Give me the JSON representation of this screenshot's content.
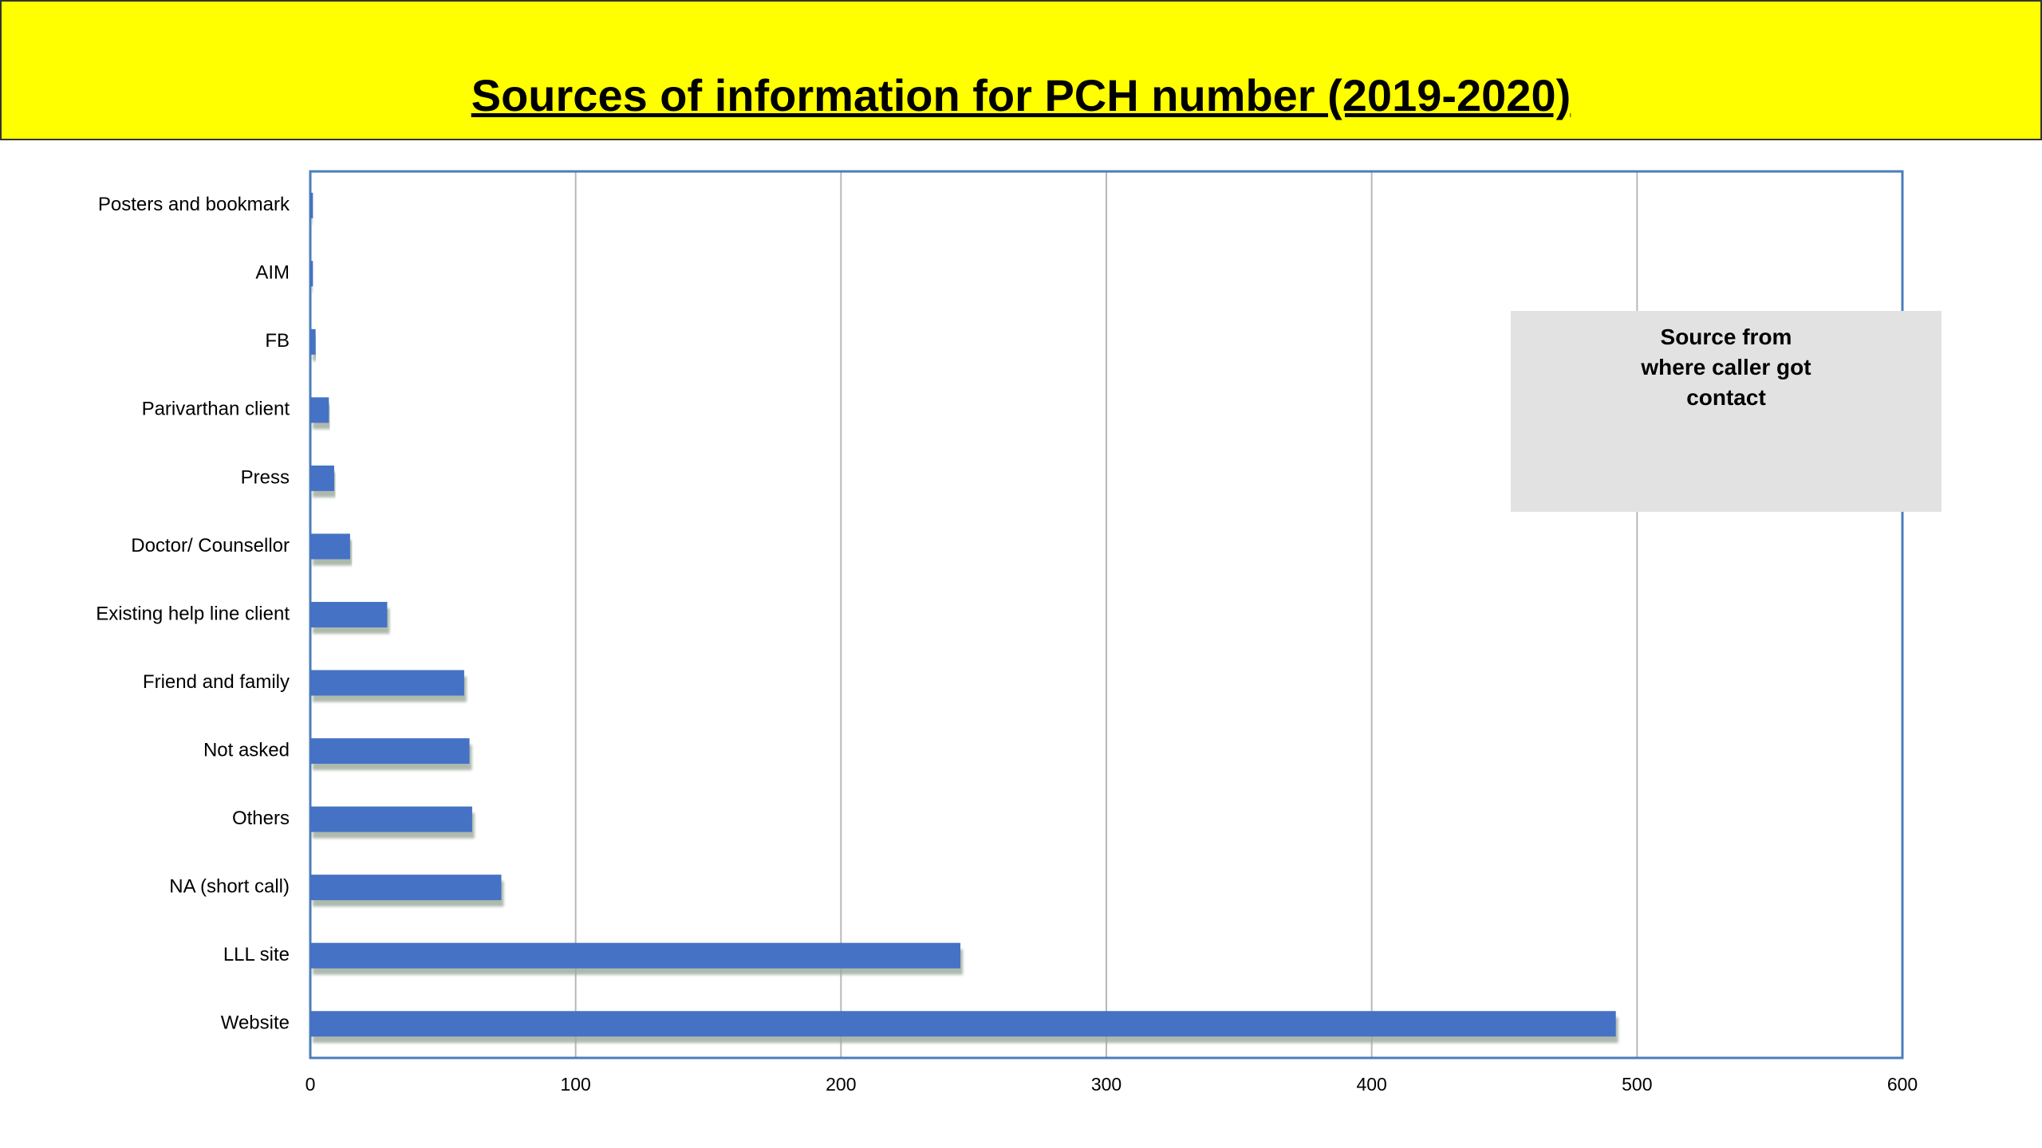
{
  "chart_data": {
    "type": "bar",
    "orientation": "horizontal",
    "title": "Sources of information for PCH number (2019-2020)",
    "categories": [
      "Posters and bookmark",
      "AIM",
      "FB",
      "Parivarthan client",
      "Press",
      "Doctor/ Counsellor",
      "Existing help line client",
      "Friend and family",
      "Not asked",
      "Others",
      "NA (short call)",
      "LLL site",
      "Website"
    ],
    "series": [
      {
        "name": "Source from where caller got contact",
        "color": "#4472c4",
        "values": [
          1,
          1,
          2,
          7,
          9,
          15,
          29,
          58,
          60,
          61,
          72,
          245,
          492
        ]
      }
    ],
    "xlim": [
      0,
      600
    ],
    "xticks": [
      0,
      100,
      200,
      300,
      400,
      500,
      600
    ],
    "grid": true
  }
}
